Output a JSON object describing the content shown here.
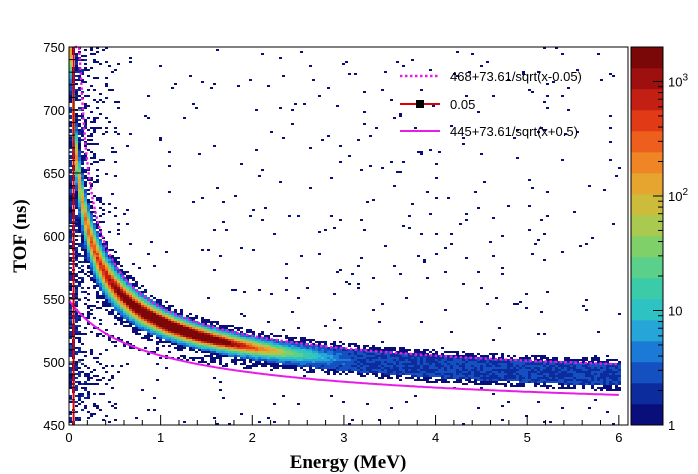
{
  "chart_data": {
    "type": "heatmap",
    "title": "",
    "xlabel": "Energy (MeV)",
    "ylabel": "TOF (ns)",
    "xlim": [
      0,
      6.1
    ],
    "ylim": [
      450,
      750
    ],
    "x_ticks": [
      0,
      1,
      2,
      3,
      4,
      5,
      6
    ],
    "y_ticks": [
      450,
      500,
      550,
      600,
      650,
      700,
      750
    ],
    "colorbar": {
      "scale": "log",
      "range": [
        1,
        2000
      ],
      "labels": [
        {
          "text": "1",
          "value": 1
        },
        {
          "text": "10",
          "value": 10
        },
        {
          "text": "10",
          "sup": "2",
          "value": 100
        },
        {
          "text": "10",
          "sup": "3",
          "value": 1000
        }
      ],
      "colors": [
        "#0a0e7a",
        "#0c2c9e",
        "#1450c0",
        "#1b7ad6",
        "#26a6d8",
        "#2fc2c4",
        "#3ccba8",
        "#5ad08a",
        "#80d06a",
        "#a9c94f",
        "#cdbc3c",
        "#e6a52e",
        "#ef8524",
        "#ee5e1c",
        "#e03a17",
        "#c41f13",
        "#9e0f0f",
        "#7a0808"
      ]
    },
    "series": [
      {
        "name": "468+73.61/sqrt(x-0.05)",
        "formula": "468 + 73.61/sqrt(x-0.05)",
        "style": "dotted",
        "color": "#e81ce8"
      },
      {
        "name": "0.05",
        "formula": "x = 0.05",
        "style": "solid-vertical-with-marker",
        "color": "#e00000"
      },
      {
        "name": "445+73.61/sqrt(x+0.5)",
        "formula": "445 + 73.61/sqrt(x+0.5)",
        "style": "solid",
        "color": "#e81ce8"
      }
    ],
    "band": {
      "description_formula": "TOF ≈ 460 + 73.61/sqrt(E+0.05)",
      "extends_to_x": 6.0
    },
    "legend_position": "top-right",
    "grid": false
  }
}
